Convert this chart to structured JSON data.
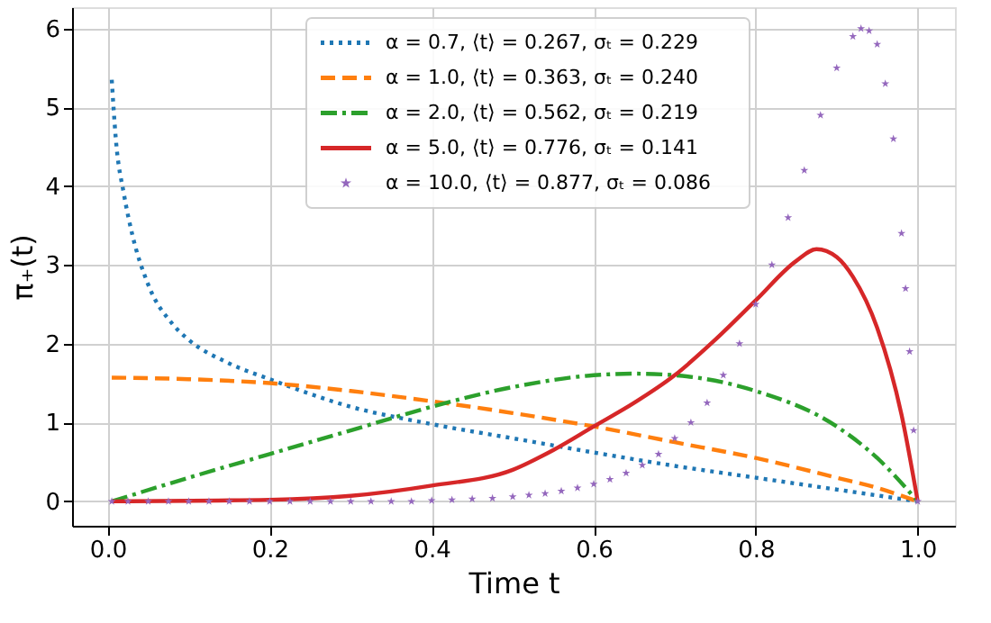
{
  "chart_data": {
    "type": "line",
    "xlabel": "Time t",
    "ylabel": "π₊(t)",
    "xlim": [
      -0.044,
      1.046
    ],
    "ylim": [
      -0.31,
      6.27
    ],
    "xticks": [
      {
        "value": 0,
        "label": "0.0"
      },
      {
        "value": 0.2,
        "label": "0.2"
      },
      {
        "value": 0.4,
        "label": "0.4"
      },
      {
        "value": 0.6,
        "label": "0.6"
      },
      {
        "value": 0.8,
        "label": "0.8"
      },
      {
        "value": 1,
        "label": "1.0"
      }
    ],
    "yticks": [
      0,
      1,
      2,
      3,
      4,
      5,
      6
    ],
    "grid": true,
    "legend": "top",
    "series": [
      {
        "name": "α = 0.7, ⟨t⟩ = 0.267, σₜ = 0.229",
        "color": "#1f77b4",
        "type": "line",
        "line_style": "dotted",
        "x": [
          0.005,
          0.01,
          0.02,
          0.03,
          0.05,
          0.08,
          0.1,
          0.15,
          0.2,
          0.3,
          0.4,
          0.5,
          0.6,
          0.7,
          0.8,
          0.9,
          1.0
        ],
        "values": [
          5.35,
          4.6,
          3.9,
          3.4,
          2.75,
          2.25,
          2.05,
          1.75,
          1.55,
          1.2,
          0.98,
          0.8,
          0.62,
          0.45,
          0.3,
          0.15,
          0
        ]
      },
      {
        "name": "α = 1.0, ⟨t⟩ = 0.363, σₜ = 0.240",
        "color": "#ff7f0e",
        "type": "line",
        "line_style": "dashed",
        "x": [
          0.005,
          0.1,
          0.2,
          0.3,
          0.4,
          0.5,
          0.6,
          0.7,
          0.8,
          0.9,
          0.95,
          1.0
        ],
        "values": [
          1.57,
          1.55,
          1.5,
          1.4,
          1.27,
          1.12,
          0.95,
          0.75,
          0.55,
          0.3,
          0.17,
          0
        ]
      },
      {
        "name": "α = 2.0, ⟨t⟩ = 0.562, σₜ = 0.219",
        "color": "#2ca02c",
        "type": "line",
        "line_style": "dashdot",
        "x": [
          0.005,
          0.1,
          0.2,
          0.3,
          0.4,
          0.5,
          0.6,
          0.65,
          0.7,
          0.8,
          0.9,
          0.95,
          1.0
        ],
        "values": [
          0,
          0.3,
          0.6,
          0.9,
          1.2,
          1.45,
          1.6,
          1.62,
          1.6,
          1.4,
          0.95,
          0.55,
          0
        ]
      },
      {
        "name": "α = 5.0, ⟨t⟩ = 0.776, σₜ = 0.141",
        "color": "#d62728",
        "line_style": "solid",
        "x": [
          0.005,
          0.2,
          0.3,
          0.4,
          0.5,
          0.55,
          0.6,
          0.65,
          0.7,
          0.75,
          0.8,
          0.85,
          0.875,
          0.9,
          0.92,
          0.95,
          0.98,
          1.0
        ],
        "values": [
          0,
          0.02,
          0.07,
          0.2,
          0.4,
          0.65,
          0.95,
          1.25,
          1.6,
          2.05,
          2.55,
          3.05,
          3.2,
          3.1,
          2.85,
          2.2,
          1.1,
          0
        ]
      },
      {
        "name": "α = 10.0, ⟨t⟩ = 0.877, σₜ = 0.086",
        "color": "#9467bd",
        "type": "scatter",
        "marker": "star",
        "x": [
          0.005,
          0.025,
          0.05,
          0.075,
          0.1,
          0.125,
          0.15,
          0.175,
          0.2,
          0.225,
          0.25,
          0.275,
          0.3,
          0.325,
          0.35,
          0.375,
          0.4,
          0.425,
          0.45,
          0.475,
          0.5,
          0.52,
          0.54,
          0.56,
          0.58,
          0.6,
          0.62,
          0.64,
          0.66,
          0.68,
          0.7,
          0.72,
          0.74,
          0.76,
          0.78,
          0.8,
          0.82,
          0.84,
          0.86,
          0.88,
          0.9,
          0.92,
          0.93,
          0.94,
          0.95,
          0.96,
          0.97,
          0.98,
          0.985,
          0.99,
          0.995,
          1.0
        ],
        "values": [
          0,
          0,
          0,
          0,
          0,
          0,
          0,
          0,
          0,
          0,
          0,
          0,
          0,
          0,
          0,
          0,
          0.01,
          0.02,
          0.03,
          0.04,
          0.06,
          0.08,
          0.1,
          0.13,
          0.17,
          0.22,
          0.28,
          0.36,
          0.46,
          0.6,
          0.8,
          1.0,
          1.25,
          1.6,
          2.0,
          2.5,
          3.0,
          3.6,
          4.2,
          4.9,
          5.5,
          5.9,
          6.0,
          5.97,
          5.8,
          5.3,
          4.6,
          3.4,
          2.7,
          1.9,
          0.9,
          0
        ]
      }
    ]
  }
}
